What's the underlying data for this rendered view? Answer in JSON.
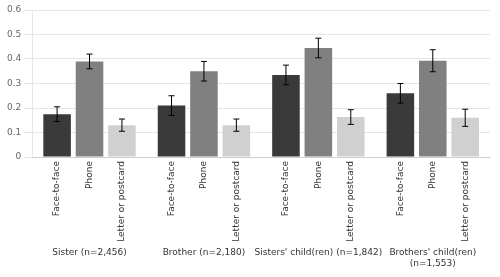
{
  "chart_data": {
    "type": "bar",
    "categories": [
      "Sister (n=2,456)",
      "Brother (n=2,180)",
      "Sisters' child(ren) (n=1,842)",
      "Brothers' child(ren)\n(n=1,553)"
    ],
    "series": [
      {
        "name": "Face-to-face",
        "color": "#3a3a3a",
        "values": [
          0.175,
          0.21,
          0.335,
          0.26
        ],
        "errors": [
          0.03,
          0.04,
          0.04,
          0.04
        ]
      },
      {
        "name": "Phone",
        "color": "#808080",
        "values": [
          0.39,
          0.35,
          0.445,
          0.393
        ],
        "errors": [
          0.03,
          0.04,
          0.04,
          0.045
        ]
      },
      {
        "name": "Letter or postcard",
        "color": "#d0d0d0",
        "values": [
          0.13,
          0.13,
          0.163,
          0.16
        ],
        "errors": [
          0.025,
          0.025,
          0.03,
          0.035
        ]
      }
    ],
    "ylim": [
      0,
      0.6
    ],
    "yticks": [
      0,
      0.1,
      0.2,
      0.3,
      0.4,
      0.5,
      0.6
    ],
    "grid": true
  }
}
